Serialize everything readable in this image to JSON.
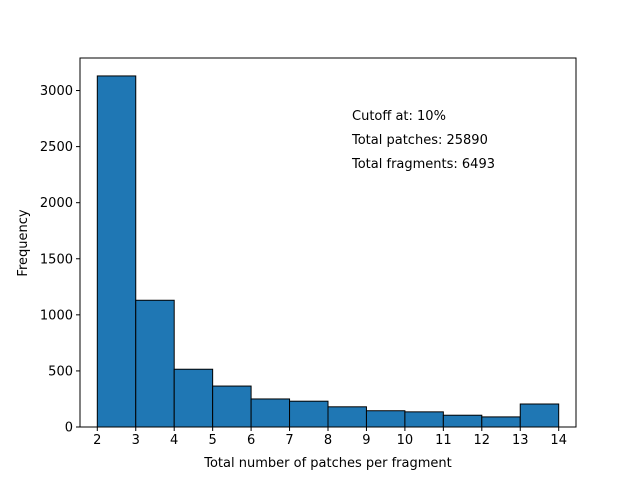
{
  "chart_data": {
    "type": "bar",
    "title": "",
    "xlabel": "Total number of patches per fragment",
    "ylabel": "Frequency",
    "bin_edges": [
      2,
      3,
      4,
      5,
      6,
      7,
      8,
      9,
      10,
      11,
      12,
      13,
      14
    ],
    "values": [
      3130,
      1130,
      515,
      365,
      250,
      230,
      180,
      145,
      135,
      105,
      90,
      205
    ],
    "xlim": [
      1.55,
      14.45
    ],
    "ylim": [
      0,
      3290
    ],
    "xticks": [
      2,
      3,
      4,
      5,
      6,
      7,
      8,
      9,
      10,
      11,
      12,
      13,
      14
    ],
    "yticks": [
      0,
      500,
      1000,
      1500,
      2000,
      2500,
      3000
    ],
    "grid": false,
    "colors": {
      "bar_fill": "#1f77b4",
      "bar_edge": "#000000",
      "axis": "#000000",
      "text": "#000000"
    },
    "annotations": [
      "Cutoff at: 10%",
      "Total patches: 25890",
      "Total fragments: 6493"
    ]
  }
}
